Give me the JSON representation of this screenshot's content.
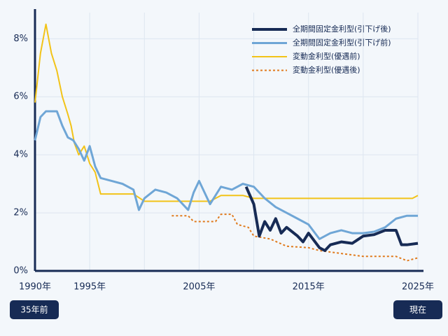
{
  "chart_data": {
    "type": "line",
    "xlim": [
      1990,
      2025
    ],
    "ylim": [
      0,
      8.9
    ],
    "xticks": [
      {
        "value": 1990,
        "label": "1990年"
      },
      {
        "value": 1995,
        "label": "1995年"
      },
      {
        "value": 2005,
        "label": "2005年"
      },
      {
        "value": 2015,
        "label": "2015年"
      },
      {
        "value": 2025,
        "label": "2025年"
      }
    ],
    "xgrid": [
      2000,
      2010,
      2020
    ],
    "yticks": [
      {
        "value": 0,
        "label": "0%"
      },
      {
        "value": 2,
        "label": "2%"
      },
      {
        "value": 4,
        "label": "4%"
      },
      {
        "value": 6,
        "label": "6%"
      },
      {
        "value": 8,
        "label": "8%"
      }
    ],
    "grid": true,
    "legend": "upper right",
    "annotations": [
      "35年前",
      "現在"
    ],
    "series": [
      {
        "name": "全期間固定金利型(引下げ後)",
        "color": "#172b55",
        "width": 4,
        "dashed": false,
        "x": [
          2009.3,
          2010,
          2010.5,
          2011,
          2011.5,
          2012,
          2012.5,
          2013,
          2014,
          2014.5,
          2015,
          2016,
          2016.5,
          2017,
          2018,
          2019,
          2020,
          2021,
          2022,
          2023,
          2023.5,
          2024,
          2025
        ],
        "values": [
          2.9,
          2.3,
          1.2,
          1.7,
          1.4,
          1.8,
          1.3,
          1.5,
          1.2,
          1.0,
          1.3,
          0.8,
          0.7,
          0.9,
          1.0,
          0.95,
          1.2,
          1.25,
          1.4,
          1.4,
          0.9,
          0.9,
          0.95
        ]
      },
      {
        "name": "全期間固定金利型(引下げ前)",
        "color": "#6fa6d6",
        "width": 3,
        "dashed": false,
        "x": [
          1990,
          1990.5,
          1991,
          1992,
          1992.5,
          1993,
          1993.5,
          1994,
          1994.5,
          1995,
          1995.5,
          1996,
          1997,
          1998,
          1999,
          1999.5,
          2000,
          2001,
          2002,
          2003,
          2004,
          2004.5,
          2005,
          2006,
          2007,
          2008,
          2009,
          2010,
          2011,
          2012,
          2013,
          2014,
          2015,
          2016,
          2017,
          2018,
          2019,
          2020,
          2021,
          2022,
          2023,
          2024,
          2025
        ],
        "values": [
          4.5,
          5.3,
          5.5,
          5.5,
          5.0,
          4.6,
          4.5,
          4.2,
          3.8,
          4.3,
          3.6,
          3.2,
          3.1,
          3.0,
          2.8,
          2.1,
          2.5,
          2.8,
          2.7,
          2.5,
          2.1,
          2.7,
          3.1,
          2.3,
          2.9,
          2.8,
          3.0,
          2.9,
          2.5,
          2.2,
          2.0,
          1.8,
          1.6,
          1.1,
          1.3,
          1.4,
          1.3,
          1.3,
          1.35,
          1.5,
          1.8,
          1.9,
          1.9
        ]
      },
      {
        "name": "変動金利型(優遇前)",
        "color": "#f2c318",
        "width": 2,
        "dashed": false,
        "x": [
          1990,
          1990.5,
          1991,
          1991.5,
          1992,
          1992.5,
          1993,
          1993.3,
          1993.6,
          1994,
          1994.5,
          1995,
          1995.5,
          1996,
          1997,
          1999,
          2000,
          2003,
          2006,
          2007,
          2009,
          2010,
          2015,
          2020,
          2024.5,
          2025
        ],
        "values": [
          5.8,
          7.5,
          8.5,
          7.5,
          6.9,
          6.0,
          5.4,
          5.0,
          4.4,
          4.0,
          4.3,
          3.7,
          3.4,
          2.65,
          2.65,
          2.65,
          2.4,
          2.4,
          2.4,
          2.6,
          2.6,
          2.5,
          2.5,
          2.5,
          2.5,
          2.6
        ]
      },
      {
        "name": "変動金利型(優遇後)",
        "color": "#e07a1c",
        "width": 2,
        "dashed": true,
        "x": [
          2002.5,
          2004,
          2004.5,
          2006.5,
          2007,
          2008,
          2008.5,
          2009.5,
          2010,
          2011.5,
          2013,
          2015,
          2016,
          2018,
          2020,
          2023,
          2024,
          2025
        ],
        "values": [
          1.9,
          1.9,
          1.7,
          1.7,
          1.95,
          1.95,
          1.6,
          1.5,
          1.2,
          1.1,
          0.85,
          0.8,
          0.7,
          0.6,
          0.5,
          0.5,
          0.35,
          0.45
        ]
      }
    ]
  }
}
